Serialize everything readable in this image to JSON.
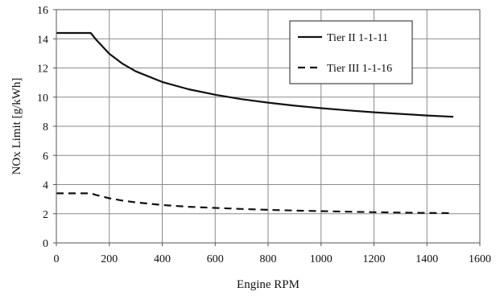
{
  "chart_data": {
    "type": "line",
    "title": "",
    "xlabel": "Engine RPM",
    "ylabel": "NOx Limit [g/kWh]",
    "xlim": [
      0,
      1600
    ],
    "ylim": [
      0,
      16
    ],
    "x_ticks": [
      0,
      200,
      400,
      600,
      800,
      1000,
      1200,
      1400,
      1600
    ],
    "y_ticks": [
      0,
      2,
      4,
      6,
      8,
      10,
      12,
      14,
      16
    ],
    "grid": true,
    "legend": "top-right",
    "series": [
      {
        "name": "Tier II 1-1-11",
        "style": "solid",
        "color": "#111111",
        "x": [
          0,
          130,
          150,
          200,
          250,
          300,
          400,
          500,
          600,
          700,
          800,
          900,
          1000,
          1100,
          1200,
          1300,
          1400,
          1500
        ],
        "y": [
          14.4,
          14.4,
          13.95,
          12.97,
          12.29,
          11.77,
          11.04,
          10.54,
          10.16,
          9.86,
          9.62,
          9.41,
          9.24,
          9.09,
          8.96,
          8.85,
          8.74,
          8.65
        ]
      },
      {
        "name": "Tier III 1-1-16",
        "style": "dashed",
        "color": "#111111",
        "x": [
          0,
          130,
          150,
          200,
          250,
          300,
          400,
          500,
          600,
          700,
          800,
          900,
          1000,
          1100,
          1200,
          1300,
          1400,
          1500
        ],
        "y": [
          3.4,
          3.4,
          3.29,
          3.06,
          2.9,
          2.78,
          2.6,
          2.48,
          2.4,
          2.33,
          2.27,
          2.22,
          2.18,
          2.14,
          2.11,
          2.08,
          2.06,
          2.04
        ]
      }
    ]
  }
}
